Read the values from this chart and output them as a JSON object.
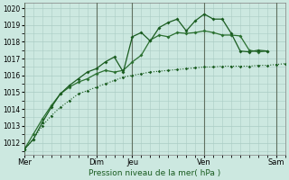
{
  "background_color": "#cce8e0",
  "grid_color": "#aaccC4",
  "line_color1": "#1a5c20",
  "line_color2": "#2a7030",
  "line_color3": "#1a5c20",
  "xlabel": "Pression niveau de la mer( hPa )",
  "ylim": [
    1011.3,
    1020.3
  ],
  "yticks": [
    1012,
    1013,
    1014,
    1015,
    1016,
    1017,
    1018,
    1019,
    1020
  ],
  "day_labels": [
    "Mer",
    "Dim",
    "Jeu",
    "Ven",
    "Sam"
  ],
  "day_positions": [
    0,
    96,
    144,
    240,
    336
  ],
  "xlim": [
    0,
    348
  ],
  "series1_x": [
    0,
    12,
    24,
    36,
    48,
    60,
    72,
    84,
    96,
    108,
    120,
    132,
    144,
    156,
    168,
    180,
    192,
    204,
    216,
    228,
    240,
    252,
    264,
    276,
    288,
    300,
    312,
    324,
    336,
    348
  ],
  "series1_y": [
    1011.6,
    1012.2,
    1013.0,
    1013.6,
    1014.1,
    1014.5,
    1014.9,
    1015.1,
    1015.3,
    1015.5,
    1015.7,
    1015.9,
    1016.0,
    1016.1,
    1016.2,
    1016.25,
    1016.3,
    1016.35,
    1016.4,
    1016.45,
    1016.5,
    1016.5,
    1016.55,
    1016.55,
    1016.55,
    1016.55,
    1016.6,
    1016.6,
    1016.65,
    1016.7
  ],
  "series2_x": [
    0,
    12,
    24,
    36,
    48,
    60,
    72,
    84,
    96,
    108,
    120,
    132,
    144,
    156,
    168,
    180,
    192,
    204,
    216,
    228,
    240,
    252,
    264,
    276,
    288,
    300,
    312,
    324
  ],
  "series2_y": [
    1011.6,
    1012.5,
    1013.4,
    1014.2,
    1014.9,
    1015.3,
    1015.6,
    1015.8,
    1016.1,
    1016.3,
    1016.2,
    1016.3,
    1016.8,
    1017.2,
    1018.1,
    1018.4,
    1018.3,
    1018.55,
    1018.5,
    1018.55,
    1018.65,
    1018.55,
    1018.4,
    1018.4,
    1018.35,
    1017.5,
    1017.4,
    1017.45
  ],
  "series3_x": [
    0,
    12,
    24,
    36,
    48,
    60,
    72,
    84,
    96,
    108,
    120,
    132,
    144,
    156,
    168,
    180,
    192,
    204,
    216,
    228,
    240,
    252,
    264,
    276,
    288,
    300,
    312,
    324
  ],
  "series3_y": [
    1011.6,
    1012.2,
    1013.2,
    1014.1,
    1014.9,
    1015.4,
    1015.8,
    1016.2,
    1016.4,
    1016.8,
    1017.1,
    1016.2,
    1018.3,
    1018.55,
    1018.05,
    1018.85,
    1019.15,
    1019.35,
    1018.65,
    1019.25,
    1019.65,
    1019.35,
    1019.35,
    1018.5,
    1017.45,
    1017.4,
    1017.5,
    1017.45
  ]
}
